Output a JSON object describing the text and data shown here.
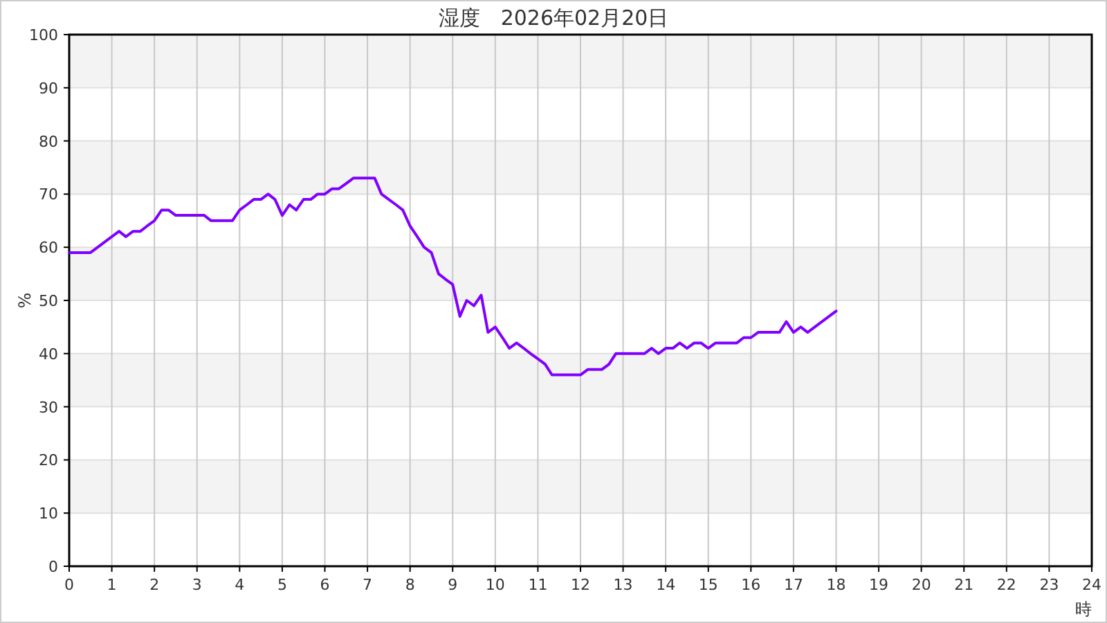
{
  "chart_data": {
    "type": "line",
    "title": "湿度　2026年02月20日",
    "xlabel": "時",
    "ylabel": "%",
    "xlim": [
      0,
      24
    ],
    "xticks": [
      0,
      1,
      2,
      3,
      4,
      5,
      6,
      7,
      8,
      9,
      10,
      11,
      12,
      13,
      14,
      15,
      16,
      17,
      18,
      19,
      20,
      21,
      22,
      23,
      24
    ],
    "ylim": [
      0,
      100
    ],
    "yticks": [
      0,
      10,
      20,
      30,
      40,
      50,
      60,
      70,
      80,
      90,
      100
    ],
    "grid": true,
    "marker": "none",
    "line_style": "solid",
    "series": [
      {
        "color": "#8000ff",
        "x": [
          0,
          0.5,
          1.17,
          1.33,
          1.5,
          1.67,
          1.83,
          2,
          2.17,
          2.33,
          2.5,
          3.17,
          3.33,
          3.83,
          4,
          4.17,
          4.33,
          4.5,
          4.67,
          4.83,
          5,
          5.17,
          5.33,
          5.5,
          5.67,
          5.83,
          6,
          6.17,
          6.33,
          6.5,
          6.67,
          7.17,
          7.33,
          7.5,
          7.67,
          7.83,
          8,
          8.17,
          8.33,
          8.5,
          8.67,
          8.83,
          9,
          9.17,
          9.33,
          9.5,
          9.67,
          9.83,
          10,
          10.17,
          10.33,
          10.5,
          10.67,
          10.83,
          11,
          11.17,
          11.33,
          12,
          12.17,
          12.5,
          12.67,
          12.83,
          13.5,
          13.67,
          13.83,
          14,
          14.17,
          14.33,
          14.5,
          14.67,
          14.83,
          15,
          15.17,
          15.67,
          15.83,
          16,
          16.17,
          16.67,
          16.83,
          17,
          17.17,
          17.33,
          18
        ],
        "values": [
          59,
          59,
          63,
          62,
          63,
          63,
          64,
          65,
          67,
          67,
          66,
          66,
          65,
          65,
          67,
          68,
          69,
          69,
          70,
          69,
          66,
          68,
          67,
          69,
          69,
          70,
          70,
          71,
          71,
          72,
          73,
          73,
          70,
          69,
          68,
          67,
          64,
          62,
          60,
          59,
          55,
          54,
          53,
          47,
          50,
          49,
          51,
          44,
          45,
          43,
          41,
          42,
          41,
          40,
          39,
          38,
          36,
          36,
          37,
          37,
          38,
          40,
          40,
          41,
          40,
          41,
          41,
          42,
          41,
          42,
          42,
          41,
          42,
          42,
          43,
          43,
          44,
          44,
          46,
          44,
          45,
          44,
          48
        ]
      }
    ]
  }
}
